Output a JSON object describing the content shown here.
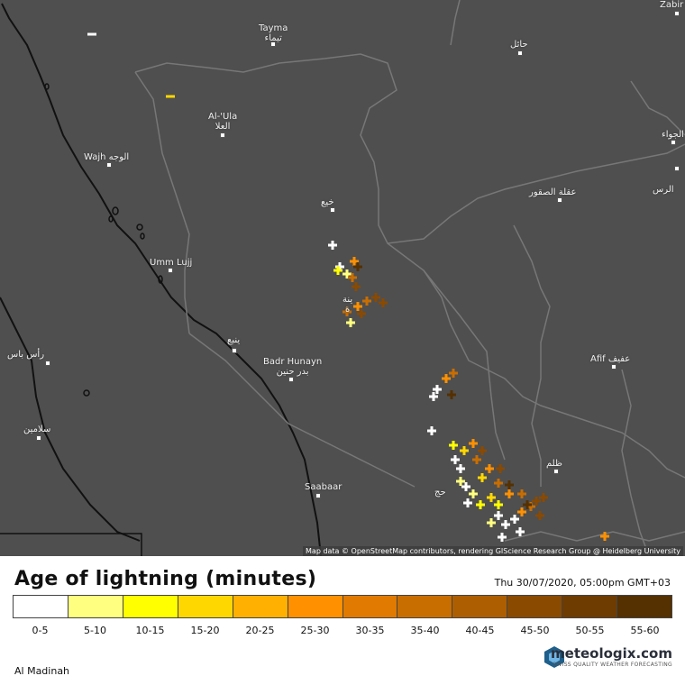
{
  "map": {
    "attribution": "Map data © OpenStreetMap contributors, rendering GIScience Research Group @ Heidelberg University",
    "cities": [
      {
        "id": "tayma",
        "label": "Tayma",
        "label2": "تيماء"
      },
      {
        "id": "hail",
        "label": "حائل",
        "label2": ""
      },
      {
        "id": "zabir",
        "label": "Zabir",
        "label2": ""
      },
      {
        "id": "alula",
        "label": "Al-'Ula",
        "label2": "العلا"
      },
      {
        "id": "wajh",
        "label": "Wajh الوجه",
        "label2": ""
      },
      {
        "id": "jawa",
        "label": "الجواء",
        "label2": ""
      },
      {
        "id": "ras",
        "label": "الرس",
        "label2": ""
      },
      {
        "id": "khaybar",
        "label": "خيع",
        "label2": ""
      },
      {
        "id": "uqlat",
        "label": "عقلة الصقور",
        "label2": ""
      },
      {
        "id": "ummlujj",
        "label": "Umm Lujj",
        "label2": ""
      },
      {
        "id": "madinah",
        "label": "ينة",
        "label2": "ة"
      },
      {
        "id": "yanbu",
        "label": "ينبع",
        "label2": ""
      },
      {
        "id": "badr",
        "label": "Badr Hunayn",
        "label2": "بدر حنين"
      },
      {
        "id": "afif",
        "label": "Afif عفيف",
        "label2": ""
      },
      {
        "id": "rasb",
        "label": "رأس باس",
        "label2": ""
      },
      {
        "id": "salamin",
        "label": "سلامين",
        "label2": ""
      },
      {
        "id": "zalim",
        "label": "ظلم",
        "label2": ""
      },
      {
        "id": "sabaar",
        "label": "Saabaar",
        "label2": ""
      },
      {
        "id": "kulay",
        "label": "حج",
        "label2": ""
      }
    ]
  },
  "legend": {
    "title": "Age of lightning (minutes)",
    "timestamp": "Thu 30/07/2020, 05:00pm GMT+03",
    "bins": [
      {
        "label": "0-5",
        "color": "#ffffff"
      },
      {
        "label": "5-10",
        "color": "#ffff80"
      },
      {
        "label": "10-15",
        "color": "#ffff00"
      },
      {
        "label": "15-20",
        "color": "#ffd700"
      },
      {
        "label": "20-25",
        "color": "#ffb000"
      },
      {
        "label": "25-30",
        "color": "#ff9000"
      },
      {
        "label": "30-35",
        "color": "#e07a00"
      },
      {
        "label": "35-40",
        "color": "#c86e00"
      },
      {
        "label": "40-45",
        "color": "#ad5e00"
      },
      {
        "label": "45-50",
        "color": "#8a4a00"
      },
      {
        "label": "50-55",
        "color": "#6e3b00"
      },
      {
        "label": "55-60",
        "color": "#553000"
      }
    ]
  },
  "region": "Al Madinah",
  "brand": {
    "name": "meteologix.com",
    "tagline": "SWISS QUALITY WEATHER FORECASTING"
  }
}
